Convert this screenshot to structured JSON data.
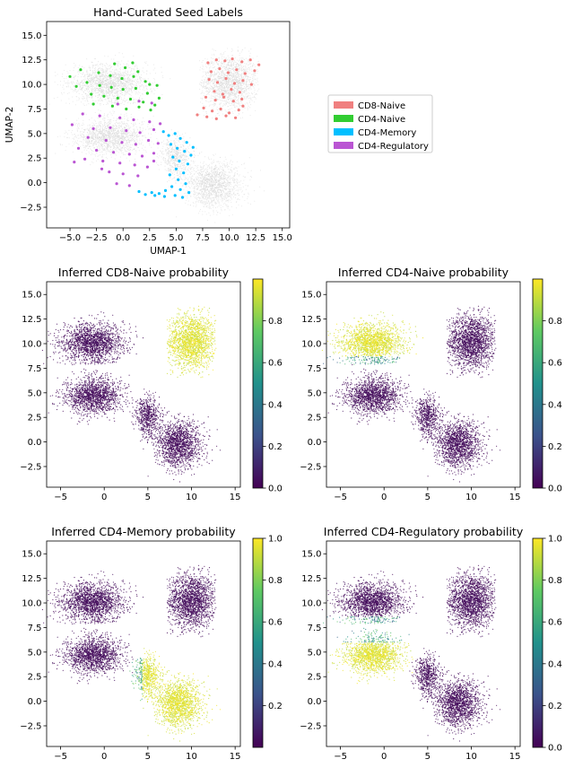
{
  "chart_data": [
    {
      "type": "scatter",
      "title": "Hand-Curated Seed Labels",
      "xlabel": "UMAP-1",
      "ylabel": "UMAP-2",
      "xlim": [
        -7.2,
        15.7
      ],
      "ylim": [
        -4.6,
        16.4
      ],
      "xticks": [
        -5.0,
        -2.5,
        0.0,
        2.5,
        5.0,
        7.5,
        10.0,
        12.5,
        15.0
      ],
      "xtick_labels": [
        "−5.0",
        "−2.5",
        "0.0",
        "2.5",
        "5.0",
        "7.5",
        "10.0",
        "12.5",
        "15.0"
      ],
      "yticks": [
        -2.5,
        0.0,
        2.5,
        5.0,
        7.5,
        10.0,
        12.5,
        15.0
      ],
      "ytick_labels": [
        "−2.5",
        "0.0",
        "2.5",
        "5.0",
        "7.5",
        "10.0",
        "12.5",
        "15.0"
      ],
      "legend_position": "right",
      "background_color": "#d9d9d9",
      "series": [
        {
          "name": "CD8-Naive",
          "color": "#f08080",
          "points": [
            [
              8.0,
              12.2
            ],
            [
              8.8,
              12.5
            ],
            [
              9.6,
              12.4
            ],
            [
              10.3,
              12.6
            ],
            [
              11.2,
              12.3
            ],
            [
              12.0,
              12.5
            ],
            [
              12.8,
              12.0
            ],
            [
              8.3,
              11.3
            ],
            [
              9.1,
              11.6
            ],
            [
              9.9,
              11.2
            ],
            [
              10.7,
              11.5
            ],
            [
              11.5,
              11.1
            ],
            [
              12.4,
              11.4
            ],
            [
              8.1,
              10.5
            ],
            [
              8.9,
              10.2
            ],
            [
              9.7,
              10.6
            ],
            [
              10.5,
              10.1
            ],
            [
              11.3,
              10.4
            ],
            [
              12.1,
              10.0
            ],
            [
              8.6,
              9.3
            ],
            [
              9.4,
              9.0
            ],
            [
              10.2,
              9.5
            ],
            [
              11.0,
              9.2
            ],
            [
              7.8,
              8.7
            ],
            [
              8.7,
              8.4
            ],
            [
              9.5,
              8.7
            ],
            [
              10.4,
              8.3
            ],
            [
              11.2,
              8.5
            ],
            [
              7.6,
              7.6
            ],
            [
              8.4,
              7.3
            ],
            [
              9.2,
              7.5
            ],
            [
              10.0,
              7.1
            ],
            [
              10.9,
              7.4
            ],
            [
              7.0,
              6.9
            ],
            [
              7.9,
              6.7
            ],
            [
              8.8,
              6.5
            ],
            [
              9.7,
              6.8
            ],
            [
              10.6,
              6.6
            ],
            [
              11.3,
              7.8
            ]
          ]
        },
        {
          "name": "CD4-Naive",
          "color": "#32cd32",
          "points": [
            [
              -0.8,
              12.1
            ],
            [
              0.2,
              11.7
            ],
            [
              1.4,
              11.3
            ],
            [
              -2.3,
              11.2
            ],
            [
              -1.2,
              10.9
            ],
            [
              -0.1,
              10.6
            ],
            [
              1.0,
              10.8
            ],
            [
              2.1,
              10.3
            ],
            [
              3.2,
              9.9
            ],
            [
              -3.4,
              10.2
            ],
            [
              -2.2,
              9.9
            ],
            [
              -1.1,
              9.7
            ],
            [
              0.0,
              9.5
            ],
            [
              1.2,
              9.6
            ],
            [
              2.3,
              9.1
            ],
            [
              3.4,
              8.6
            ],
            [
              -4.4,
              9.8
            ],
            [
              -3.0,
              9.0
            ],
            [
              -1.8,
              8.8
            ],
            [
              -0.5,
              8.6
            ],
            [
              0.7,
              8.5
            ],
            [
              1.9,
              8.2
            ],
            [
              3.0,
              7.9
            ],
            [
              -1.0,
              7.8
            ],
            [
              0.3,
              7.5
            ],
            [
              1.5,
              7.7
            ],
            [
              2.6,
              7.4
            ],
            [
              -5.0,
              10.8
            ],
            [
              -4.0,
              11.5
            ],
            [
              0.9,
              12.2
            ],
            [
              2.5,
              10.0
            ],
            [
              -2.8,
              8.0
            ]
          ]
        },
        {
          "name": "CD4-Memory",
          "color": "#00bfff",
          "points": [
            [
              3.8,
              5.2
            ],
            [
              4.3,
              4.8
            ],
            [
              4.9,
              5.0
            ],
            [
              5.4,
              4.5
            ],
            [
              6.0,
              4.1
            ],
            [
              4.5,
              3.9
            ],
            [
              5.1,
              3.5
            ],
            [
              5.8,
              3.2
            ],
            [
              6.4,
              2.8
            ],
            [
              4.7,
              2.6
            ],
            [
              5.3,
              2.2
            ],
            [
              6.1,
              1.9
            ],
            [
              5.0,
              1.4
            ],
            [
              5.7,
              1.0
            ],
            [
              4.4,
              0.8
            ],
            [
              5.2,
              0.3
            ],
            [
              5.9,
              -0.1
            ],
            [
              4.6,
              -0.4
            ],
            [
              5.4,
              -0.7
            ],
            [
              6.2,
              -1.0
            ],
            [
              4.0,
              -0.8
            ],
            [
              3.4,
              -1.1
            ],
            [
              2.7,
              -1.0
            ],
            [
              2.1,
              -1.2
            ],
            [
              1.5,
              -0.9
            ],
            [
              3.9,
              -1.4
            ],
            [
              4.9,
              -1.3
            ],
            [
              5.6,
              -1.5
            ],
            [
              3.0,
              -1.3
            ],
            [
              6.6,
              3.6
            ]
          ]
        },
        {
          "name": "CD4-Regulatory",
          "color": "#ba55d3",
          "points": [
            [
              -0.5,
              8.0
            ],
            [
              1.5,
              8.3
            ],
            [
              2.7,
              8.1
            ],
            [
              -3.8,
              7.0
            ],
            [
              -2.2,
              6.8
            ],
            [
              -0.3,
              6.6
            ],
            [
              1.0,
              6.4
            ],
            [
              2.5,
              6.2
            ],
            [
              3.5,
              6.0
            ],
            [
              -4.8,
              5.9
            ],
            [
              -2.8,
              5.5
            ],
            [
              -1.2,
              5.6
            ],
            [
              0.3,
              5.3
            ],
            [
              1.6,
              5.1
            ],
            [
              2.9,
              5.4
            ],
            [
              -3.3,
              4.6
            ],
            [
              -1.6,
              4.3
            ],
            [
              -0.1,
              4.1
            ],
            [
              1.2,
              3.9
            ],
            [
              2.4,
              4.3
            ],
            [
              3.3,
              4.0
            ],
            [
              -4.2,
              3.5
            ],
            [
              -2.5,
              3.3
            ],
            [
              -0.9,
              3.1
            ],
            [
              0.6,
              2.9
            ],
            [
              1.8,
              2.7
            ],
            [
              2.9,
              3.0
            ],
            [
              -3.6,
              2.4
            ],
            [
              -1.9,
              2.2
            ],
            [
              -0.3,
              2.0
            ],
            [
              1.1,
              1.8
            ],
            [
              2.3,
              1.6
            ],
            [
              -1.3,
              1.1
            ],
            [
              0.0,
              0.9
            ],
            [
              1.4,
              0.7
            ],
            [
              -0.6,
              -0.1
            ],
            [
              0.6,
              -0.3
            ],
            [
              -2.0,
              1.4
            ],
            [
              -4.6,
              2.1
            ],
            [
              2.9,
              2.2
            ]
          ]
        }
      ]
    },
    {
      "type": "scatter",
      "title": "Inferred CD8-Naive probability",
      "xlim": [
        -6.6,
        15.6
      ],
      "ylim": [
        -4.6,
        16.3
      ],
      "xticks": [
        -5,
        0,
        5,
        10,
        15
      ],
      "xtick_labels": [
        "−5",
        "0",
        "5",
        "10",
        "15"
      ],
      "yticks": [
        -2.5,
        0.0,
        2.5,
        5.0,
        7.5,
        10.0,
        12.5,
        15.0
      ],
      "ytick_labels": [
        "−2.5",
        "0.0",
        "2.5",
        "5.0",
        "7.5",
        "10.0",
        "12.5",
        "15.0"
      ],
      "high_cluster": "CD8",
      "colorbar": {
        "range": [
          0.0,
          1.0
        ],
        "ticks": [
          0.0,
          0.2,
          0.4,
          0.6,
          0.8
        ],
        "tick_labels": [
          "0.0",
          "0.2",
          "0.4",
          "0.6",
          "0.8"
        ],
        "colormap": "viridis"
      }
    },
    {
      "type": "scatter",
      "title": "Inferred CD4-Naive probability",
      "xlim": [
        -6.6,
        15.6
      ],
      "ylim": [
        -4.6,
        16.3
      ],
      "xticks": [
        -5,
        0,
        5,
        10,
        15
      ],
      "xtick_labels": [
        "−5",
        "0",
        "5",
        "10",
        "15"
      ],
      "yticks": [
        -2.5,
        0.0,
        2.5,
        5.0,
        7.5,
        10.0,
        12.5,
        15.0
      ],
      "ytick_labels": [
        "−2.5",
        "0.0",
        "2.5",
        "5.0",
        "7.5",
        "10.0",
        "12.5",
        "15.0"
      ],
      "high_cluster": "CD4N",
      "colorbar": {
        "range": [
          0.0,
          1.0
        ],
        "ticks": [
          0.0,
          0.2,
          0.4,
          0.6,
          0.8
        ],
        "tick_labels": [
          "0.0",
          "0.2",
          "0.4",
          "0.6",
          "0.8"
        ],
        "colormap": "viridis"
      }
    },
    {
      "type": "scatter",
      "title": "Inferred CD4-Memory probability",
      "xlim": [
        -6.6,
        15.6
      ],
      "ylim": [
        -4.6,
        16.3
      ],
      "xticks": [
        -5,
        0,
        5,
        10,
        15
      ],
      "xtick_labels": [
        "−5",
        "0",
        "5",
        "10",
        "15"
      ],
      "yticks": [
        -2.5,
        0.0,
        2.5,
        5.0,
        7.5,
        10.0,
        12.5,
        15.0
      ],
      "ytick_labels": [
        "−2.5",
        "0.0",
        "2.5",
        "5.0",
        "7.5",
        "10.0",
        "12.5",
        "15.0"
      ],
      "high_cluster": "MEM",
      "colorbar": {
        "range": [
          0.0,
          1.0
        ],
        "ticks": [
          0.2,
          0.4,
          0.6,
          0.8,
          1.0
        ],
        "tick_labels": [
          "0.2",
          "0.4",
          "0.6",
          "0.8",
          "1.0"
        ],
        "colormap": "viridis"
      }
    },
    {
      "type": "scatter",
      "title": "Inferred CD4-Regulatory probability",
      "xlim": [
        -6.6,
        15.6
      ],
      "ylim": [
        -4.6,
        16.3
      ],
      "xticks": [
        -5,
        0,
        5,
        10,
        15
      ],
      "xtick_labels": [
        "−5",
        "0",
        "5",
        "10",
        "15"
      ],
      "yticks": [
        -2.5,
        0.0,
        2.5,
        5.0,
        7.5,
        10.0,
        12.5,
        15.0
      ],
      "ytick_labels": [
        "−2.5",
        "0.0",
        "2.5",
        "5.0",
        "7.5",
        "10.0",
        "12.5",
        "15.0"
      ],
      "high_cluster": "REG",
      "colorbar": {
        "range": [
          0.0,
          1.0
        ],
        "ticks": [
          0.0,
          0.2,
          0.4,
          0.6,
          0.8,
          1.0
        ],
        "tick_labels": [
          "0.0",
          "0.2",
          "0.4",
          "0.6",
          "0.8",
          "1.0"
        ],
        "colormap": "viridis"
      }
    }
  ]
}
